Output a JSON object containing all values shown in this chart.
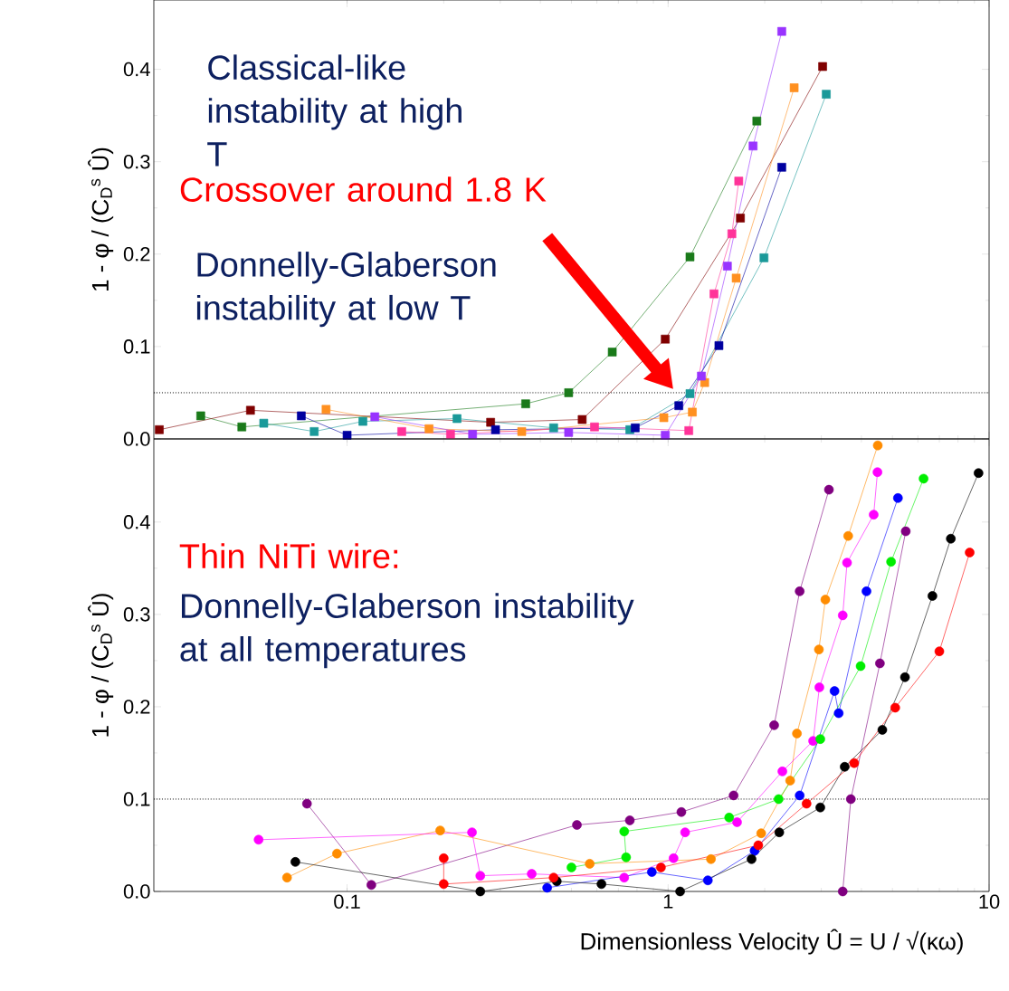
{
  "chart_data": [
    {
      "type": "line",
      "marker": "square",
      "line_style": "solid",
      "log": "x",
      "xlim": [
        0.025,
        10
      ],
      "ylim": [
        0,
        0.475
      ],
      "tick_labels": "y",
      "ylabel": "1 - φ / (C$_{D}$$^{s}$ Û)",
      "xticks": [
        0.1,
        1,
        10
      ],
      "yticks": [
        {
          "value": 0,
          "label": "0.0"
        },
        {
          "value": 0.1,
          "label": "0.1"
        },
        {
          "value": 0.2,
          "label": "0.2"
        },
        {
          "value": 0.3,
          "label": "0.3"
        },
        {
          "value": 0.4,
          "label": "0.4"
        }
      ],
      "ref_lines": [
        {
          "axis": "y",
          "value": 0.05,
          "line_style": "dotted"
        }
      ],
      "annotations": [
        "Classical-like instability at high T",
        "Crossover around 1.8 K",
        "Donnelly-Glaberson instability at low T"
      ],
      "series": [
        {
          "color": "#1a7a1a",
          "x": [
            0.035,
            0.047,
            0.36,
            0.49,
            0.67,
            1.17,
            1.89
          ],
          "values": [
            0.025,
            0.013,
            0.038,
            0.05,
            0.094,
            0.197,
            0.344
          ]
        },
        {
          "color": "#800000",
          "x": [
            0.026,
            0.05,
            0.28,
            0.54,
            0.98,
            1.68,
            3.03
          ],
          "values": [
            0.01,
            0.031,
            0.018,
            0.021,
            0.108,
            0.239,
            0.403
          ]
        },
        {
          "color": "#1a9999",
          "x": [
            0.055,
            0.079,
            0.112,
            0.22,
            0.44,
            0.76,
            1.17,
            1.99,
            3.11
          ],
          "values": [
            0.017,
            0.008,
            0.019,
            0.022,
            0.012,
            0.01,
            0.049,
            0.196,
            0.373
          ]
        },
        {
          "color": "#0000a0",
          "x": [
            0.072,
            0.1,
            0.29,
            0.79,
            1.08,
            1.44,
            2.26
          ],
          "values": [
            0.025,
            0.004,
            0.01,
            0.012,
            0.036,
            0.101,
            0.294
          ]
        },
        {
          "color": "#ff9020",
          "x": [
            0.086,
            0.18,
            0.35,
            0.97,
            1.19,
            1.3,
            1.63,
            2.47
          ],
          "values": [
            0.032,
            0.011,
            0.008,
            0.023,
            0.029,
            0.061,
            0.174,
            0.38
          ]
        },
        {
          "color": "#9933ff",
          "x": [
            0.122,
            0.246,
            0.49,
            0.98,
            1.27,
            1.53,
            1.84,
            2.26
          ],
          "values": [
            0.024,
            0.005,
            0.007,
            0.004,
            0.068,
            0.187,
            0.317,
            0.441
          ]
        },
        {
          "color": "#ff3399",
          "x": [
            0.148,
            0.21,
            0.59,
            1.16,
            1.39,
            1.58,
            1.66
          ],
          "values": [
            0.008,
            0.005,
            0.013,
            0.009,
            0.157,
            0.222,
            0.279
          ]
        }
      ]
    },
    {
      "type": "line",
      "marker": "circle",
      "line_style": "solid",
      "log": "x",
      "xlim": [
        0.025,
        10
      ],
      "ylim": [
        0,
        0.49
      ],
      "xlabel": "Dimensionless Velocity Û = U / √(κω)",
      "ylabel": "1 - φ / (C$_{D}$$^{s}$ Û)",
      "xticks": [
        0.1,
        1,
        10
      ],
      "yticks": [
        {
          "value": 0,
          "label": "0.0"
        },
        {
          "value": 0.1,
          "label": "0.1"
        },
        {
          "value": 0.2,
          "label": "0.2"
        },
        {
          "value": 0.3,
          "label": "0.3"
        },
        {
          "value": 0.4,
          "label": "0.4"
        }
      ],
      "ref_lines": [
        {
          "axis": "y",
          "value": 0.1,
          "line_style": "dotted"
        }
      ],
      "annotations": [
        "Thin NiTi wire:",
        "Donnelly-Glaberson  instability at all temperatures"
      ],
      "series": [
        {
          "color": "#800080",
          "x": [
            0.075,
            0.119,
            0.52,
            0.76,
            1.1,
            1.6,
            2.14,
            2.57,
            3.17
          ],
          "values": [
            0.095,
            0.007,
            0.072,
            0.077,
            0.086,
            0.104,
            0.18,
            0.325,
            0.435
          ]
        },
        {
          "color": "#800080",
          "x": [
            3.5,
            3.71,
            4.57,
            5.5
          ],
          "values": [
            0.0,
            0.1,
            0.247,
            0.39
          ]
        },
        {
          "color": "#ff8c00",
          "x": [
            0.065,
            0.093,
            0.195,
            0.57,
            1.36,
            1.95,
            2.4,
            2.52,
            2.95,
            3.09,
            3.64,
            4.5
          ],
          "values": [
            0.015,
            0.041,
            0.066,
            0.03,
            0.035,
            0.063,
            0.12,
            0.171,
            0.262,
            0.316,
            0.385,
            0.483
          ]
        },
        {
          "color": "#ff00ff",
          "x": [
            0.053,
            0.245,
            0.26,
            0.376,
            0.73,
            1.04,
            1.13,
            1.64,
            2.27,
            2.83,
            2.96,
            3.5,
            3.61,
            4.37,
            4.49
          ],
          "values": [
            0.056,
            0.064,
            0.017,
            0.019,
            0.015,
            0.036,
            0.064,
            0.075,
            0.13,
            0.163,
            0.221,
            0.299,
            0.356,
            0.408,
            0.454
          ]
        },
        {
          "color": "#0000ff",
          "x": [
            0.42,
            0.89,
            1.33,
            1.86,
            2.57,
            3.3,
            3.4,
            4.15,
            5.2
          ],
          "values": [
            0.004,
            0.021,
            0.012,
            0.044,
            0.104,
            0.217,
            0.193,
            0.325,
            0.426
          ]
        },
        {
          "color": "#00ee00",
          "x": [
            0.5,
            0.74,
            0.73,
            1.55,
            2.21,
            2.98,
            3.98,
            4.95,
            6.25
          ],
          "values": [
            0.026,
            0.037,
            0.065,
            0.08,
            0.1,
            0.165,
            0.244,
            0.357,
            0.447
          ]
        },
        {
          "color": "#000000",
          "x": [
            0.069,
            0.26,
            0.45,
            0.62,
            1.09,
            1.82,
            2.22,
            2.98,
            3.55,
            4.65,
            5.47,
            6.66,
            7.6,
            9.27
          ],
          "values": [
            0.032,
            0.0,
            0.011,
            0.008,
            0.0,
            0.035,
            0.064,
            0.091,
            0.135,
            0.175,
            0.232,
            0.32,
            0.382,
            0.453
          ]
        },
        {
          "color": "#ff0000",
          "x": [
            0.2,
            0.2,
            0.44,
            0.95,
            1.91,
            2.7,
            3.8,
            5.1,
            7.0,
            8.7
          ],
          "values": [
            0.036,
            0.008,
            0.015,
            0.026,
            0.05,
            0.095,
            0.139,
            0.199,
            0.26,
            0.367
          ]
        }
      ]
    }
  ]
}
